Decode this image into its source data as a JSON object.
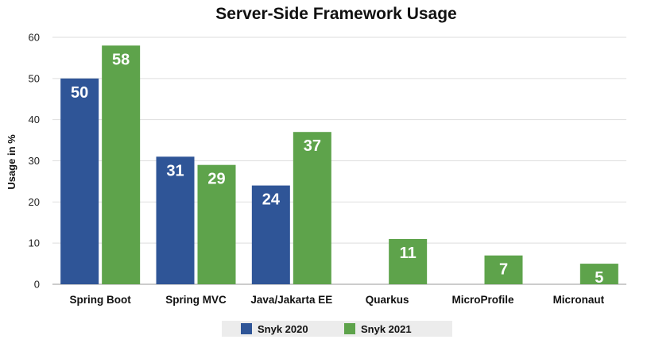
{
  "chart_data": {
    "type": "bar",
    "title": "Server-Side Framework Usage",
    "xlabel": "",
    "ylabel": "Usage in %",
    "ylim": [
      0,
      60
    ],
    "yticks": [
      0,
      10,
      20,
      30,
      40,
      50,
      60
    ],
    "grid": true,
    "legend_position": "bottom",
    "categories": [
      "Spring Boot",
      "Spring MVC",
      "Java/Jakarta EE",
      "Quarkus",
      "MicroProfile",
      "Micronaut"
    ],
    "series": [
      {
        "name": "Snyk 2020",
        "color": "#2f5597",
        "values": [
          50,
          31,
          24,
          null,
          null,
          null
        ]
      },
      {
        "name": "Snyk 2021",
        "color": "#5ea34b",
        "values": [
          58,
          29,
          37,
          11,
          7,
          5
        ]
      }
    ]
  }
}
